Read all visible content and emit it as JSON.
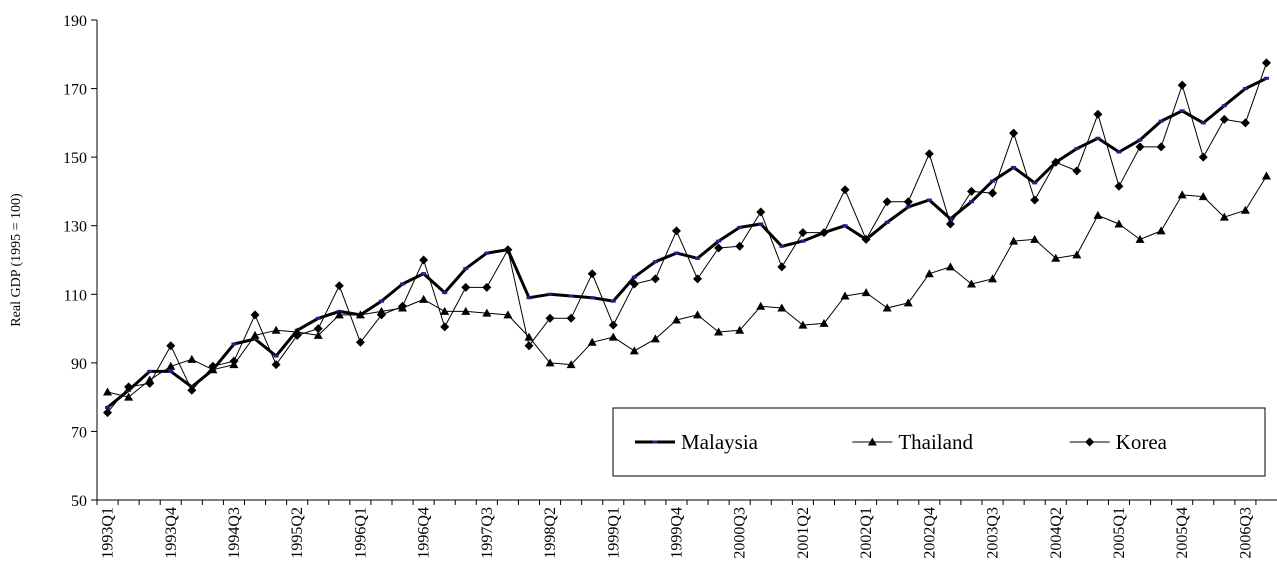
{
  "chart_data": {
    "type": "line",
    "y_label": "Real GDP (1995 = 100)",
    "categories": [
      "1993Q1",
      null,
      null,
      "1993Q4",
      null,
      null,
      "1994Q3",
      null,
      null,
      "1995Q2",
      null,
      null,
      "1996Q1",
      null,
      null,
      "1996Q4",
      null,
      null,
      "1997Q3",
      null,
      null,
      "1998Q2",
      null,
      null,
      "1999Q1",
      null,
      null,
      "1999Q4",
      null,
      null,
      "2000Q3",
      null,
      null,
      "2001Q2",
      null,
      null,
      "2002Q1",
      null,
      null,
      "2002Q4",
      null,
      null,
      "2003Q3",
      null,
      null,
      "2004Q2",
      null,
      null,
      "2005Q1",
      null,
      null,
      "2005Q4",
      null,
      null,
      "2006Q3",
      null
    ],
    "series": [
      {
        "name": "Malaysia",
        "color": "#000000",
        "marker": "dash",
        "line_width": 3,
        "values": [
          77,
          82,
          87.5,
          87.5,
          83,
          88,
          95.5,
          97,
          92,
          99.5,
          103,
          105,
          104,
          108,
          113,
          116,
          110.5,
          117.5,
          122,
          123,
          109,
          110,
          109.5,
          109,
          108,
          115,
          119.5,
          122,
          120.5,
          125.5,
          129.5,
          130.5,
          124,
          125.5,
          128,
          130,
          126,
          131,
          135.5,
          137.5,
          132,
          137,
          143,
          147,
          142.5,
          148.5,
          152.5,
          155.5,
          151.5,
          155,
          160.5,
          163.5,
          160,
          165,
          170,
          173
        ]
      },
      {
        "name": "Thailand",
        "color": "#000000",
        "marker": "triangle",
        "line_width": 1,
        "values": [
          81.5,
          80,
          85,
          89,
          91,
          88,
          89.5,
          98,
          99.5,
          99,
          98,
          104,
          104,
          105,
          106,
          108.5,
          105,
          105,
          104.5,
          104,
          97.5,
          90,
          89.5,
          96,
          97.5,
          93.5,
          97,
          102.5,
          104,
          99,
          99.5,
          106.5,
          106,
          101,
          101.5,
          109.5,
          110.5,
          106,
          107.5,
          116,
          118,
          113,
          114.5,
          125.5,
          126,
          120.5,
          121.5,
          133,
          130.5,
          126,
          128.5,
          139,
          138.5,
          132.5,
          134.5,
          144.5
        ]
      },
      {
        "name": "Korea",
        "color": "#000000",
        "marker": "diamond",
        "line_width": 1,
        "values": [
          75.5,
          83,
          84,
          95,
          82,
          89,
          90.5,
          104,
          89.5,
          98,
          100,
          112.5,
          96,
          104,
          106.5,
          120,
          100.5,
          112,
          112,
          123,
          95,
          103,
          103,
          116,
          101,
          113,
          114.5,
          128.5,
          114.5,
          123.5,
          124,
          134,
          118,
          128,
          128,
          140.5,
          126,
          137,
          137,
          151,
          130.5,
          140,
          139.5,
          157,
          137.5,
          148.5,
          146,
          162.5,
          141.5,
          153,
          153,
          171,
          150,
          161,
          160,
          177.5
        ]
      }
    ],
    "ylim": [
      50,
      190
    ],
    "yticks": [
      50,
      70,
      90,
      110,
      130,
      150,
      170,
      190
    ],
    "grid": false,
    "legend": "lower right"
  }
}
